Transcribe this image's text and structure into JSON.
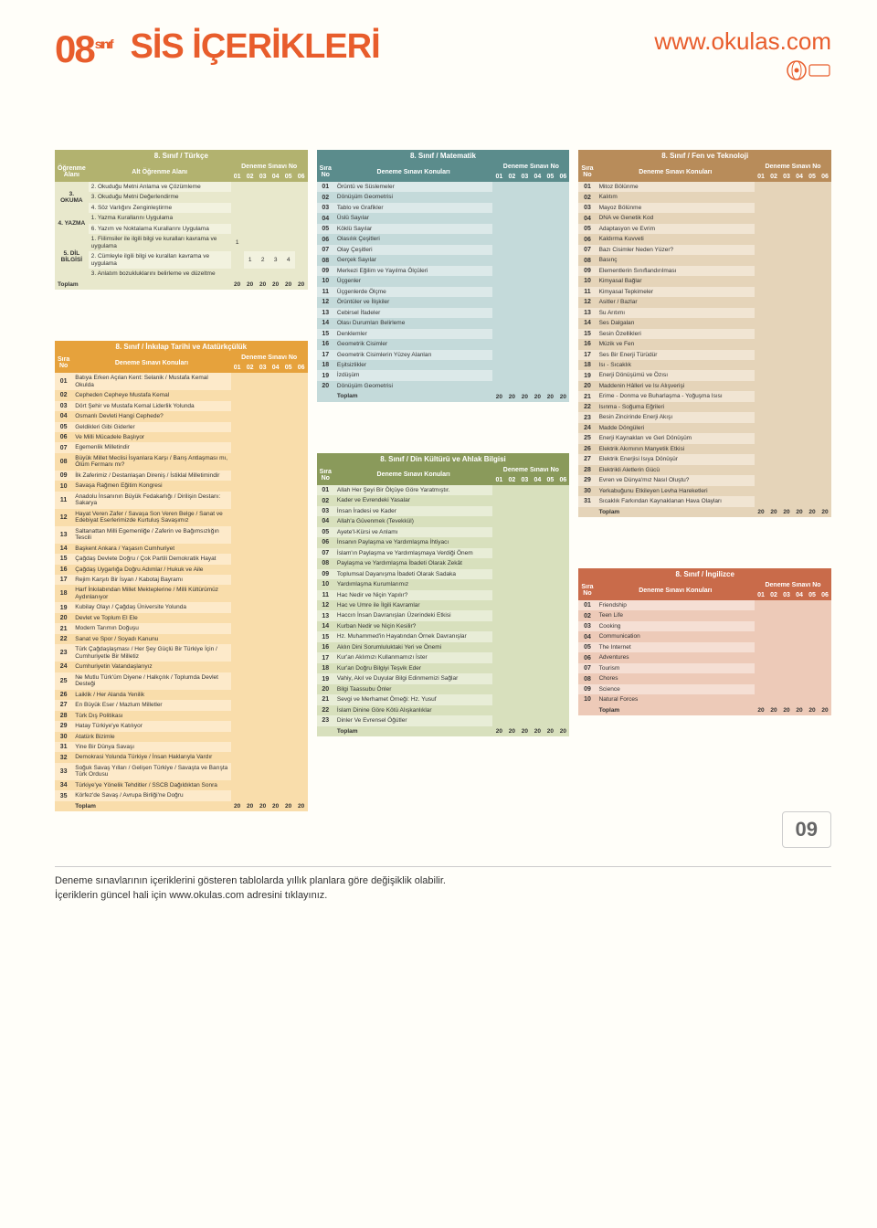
{
  "header": {
    "class_number": "08",
    "class_suffix": "sınıf",
    "title": "SİS İÇERİKLERİ",
    "website": "www.okulas.com"
  },
  "exam_cols": [
    "01",
    "02",
    "03",
    "04",
    "05",
    "06"
  ],
  "labels": {
    "sira_no": "Sıra No",
    "deneme_konulari": "Deneme Sınavı Konuları",
    "deneme_no": "Deneme Sınavı No",
    "ogrenme_alani": "Öğrenme Alanı",
    "alt_ogrenme": "Alt Öğrenme Alanı",
    "toplam": "Toplam"
  },
  "colors": {
    "turkce": {
      "head": "#b2b26f",
      "row_a": "#f2f2df",
      "row_b": "#e8e8cc",
      "stripe": "#e8e8cc"
    },
    "inkilap": {
      "head": "#e6a23c",
      "row_a": "#fdeaca",
      "row_b": "#f9ddab",
      "stripe": "#f9ddab"
    },
    "matematik": {
      "head": "#5b8c8c",
      "row_a": "#dce9e9",
      "row_b": "#c4dada",
      "stripe": "#c4dada"
    },
    "din": {
      "head": "#8a9a5b",
      "row_a": "#e8edd7",
      "row_b": "#d8e0bd",
      "stripe": "#d8e0bd"
    },
    "fen": {
      "head": "#b88c5a",
      "row_a": "#f1e5d3",
      "row_b": "#e5d4b9",
      "stripe": "#e5d4b9"
    },
    "ingilizce": {
      "head": "#c96b4a",
      "row_a": "#f5dfd4",
      "row_b": "#edcab8",
      "stripe": "#edcab8"
    }
  },
  "turkce": {
    "title": "8. Sınıf / Türkçe",
    "groups": [
      {
        "label": "3. OKUMA",
        "rows": [
          {
            "t": "2. Okuduğu Metni Anlama ve Çözümleme",
            "v": [
              "",
              "",
              "",
              "",
              "",
              ""
            ]
          },
          {
            "t": "3. Okuduğu Metni Değerlendirme",
            "v": [
              "",
              "",
              "",
              "",
              "",
              ""
            ]
          },
          {
            "t": "4. Söz Varlığını Zenginleştirme",
            "v": [
              "",
              "",
              "",
              "",
              "",
              ""
            ]
          }
        ]
      },
      {
        "label": "4. YAZMA",
        "rows": [
          {
            "t": "1. Yazma Kurallarını Uygulama",
            "v": [
              "",
              "",
              "",
              "",
              "",
              ""
            ]
          },
          {
            "t": "6. Yazım ve Noktalama Kurallarını Uygulama",
            "v": [
              "",
              "",
              "",
              "",
              "",
              ""
            ]
          }
        ]
      },
      {
        "label": "5. DİL BİLGİSİ",
        "rows": [
          {
            "t": "1. Fiilimsiler ile ilgili bilgi ve kuralları kavrama ve uygulama",
            "v": [
              "1",
              "",
              "",
              "",
              "",
              ""
            ]
          },
          {
            "t": "2. Cümleyle ilgili bilgi ve kuralları kavrama ve uygulama",
            "v": [
              "",
              "1",
              "2",
              "3",
              "4",
              ""
            ]
          },
          {
            "t": "3. Anlatım bozukluklarını belirleme ve düzeltme",
            "v": [
              "",
              "",
              "",
              "",
              "",
              ""
            ]
          }
        ]
      }
    ],
    "total": [
      "20",
      "20",
      "20",
      "20",
      "20",
      "20"
    ]
  },
  "inkilap": {
    "title": "8. Sınıf / İnkılap Tarihi ve Atatürkçülük",
    "rows": [
      "Batıya Erken Açılan Kent: Selanik / Mustafa Kemal Okulda",
      "Cepheden Cepheye Mustafa Kemal",
      "Dört Şehir ve Mustafa Kemal Liderlik Yolunda",
      "Osmanlı Devleti Hangi Cephede?",
      "Geldikleri Gibi Giderler",
      "Ve Milli Mücadele Başlıyor",
      "Egemenlik Milletindir",
      "Büyük Millet Meclisi İsyanlara Karşı / Barış Antlaşması mı, Ölüm Fermanı mı?",
      "İlk Zaferimiz / Destanlaşan Direniş / İstiklal Milletimindir",
      "Savaşa Rağmen Eğitim Kongresi",
      "Anadolu İnsanının Büyük Fedakarlığı / Dirilişin Destanı: Sakarya",
      "Hayat Veren Zafer / Savaşa Son Veren Belge / Sanat ve Edebiyat Eserlerimizde Kurtuluş Savaşımız",
      "Saltanattan Milli Egemenliğe / Zaferin ve Bağımsızlığın Tescili",
      "Başkent Ankara / Yaşasın Cumhuriyet",
      "Çağdaş Devlete Doğru / Çok Partili Demokratik Hayat",
      "Çağdaş Uygarlığa Doğru Adımlar / Hukuk ve Aile",
      "Rejim Karşıtı Bir İsyan / Kabotaj Bayramı",
      "Harf İnkılabından Millet Mekteplerine / Milli Kültürümüz Aydınlanıyor",
      "Kubilay Olayı / Çağdaş Üniversite Yolunda",
      "Devlet ve Toplum El Ele",
      "Modern Tarımın Doğuşu",
      "Sanat ve Spor / Soyadı Kanunu",
      "Türk Çağdaşlaşması / Her Şey Güçlü Bir Türkiye İçin / Cumhuriyetle Bir Milletiz",
      "Cumhuriyetin Vatandaşlarıyız",
      "Ne Mutlu Türk'üm Diyene / Halkçılık / Toplumda Devlet Desteği",
      "Laiklik / Her Alanda Yenilik",
      "En Büyük Eser / Mazlum Milletler",
      "Türk Dış Politikası",
      "Hatay Türkiye'ye Katılıyor",
      "Atatürk Bizimle",
      "Yine Bir Dünya Savaşı",
      "Demokrasi Yolunda Türkiye / İnsan Haklarıyla Vardır",
      "Soğuk Savaş Yılları / Gelişen Türkiye / Savaşta ve Barışta Türk Ordusu",
      "Türkiye'ye Yönelik Tehditler / SSCB Dağıldıktan Sonra",
      "Körfez'de Savaş / Avrupa Birliği'ne Doğru"
    ],
    "total": [
      "20",
      "20",
      "20",
      "20",
      "20",
      "20"
    ]
  },
  "matematik": {
    "title": "8. Sınıf / Matematik",
    "rows": [
      "Örüntü ve Süslemeler",
      "Dönüşüm Geometrisi",
      "Tablo ve Grafikler",
      "Üslü Sayılar",
      "Köklü Sayılar",
      "Olasılık Çeşitleri",
      "Olay Çeşitleri",
      "Gerçek Sayılar",
      "Merkezi Eğilim ve Yayılma Ölçüleri",
      "Üçgenler",
      "Üçgenlerde Ölçme",
      "Örüntüler ve İlişkiler",
      "Cebirsel İfadeler",
      "Olası Durumları Belirleme",
      "Denklemler",
      "Geometrik Cisimler",
      "Geometrik Cisimlerin Yüzey Alanları",
      "Eşitsizlikler",
      "İzdüşüm",
      "Dönüşüm Geometrisi"
    ],
    "total": [
      "20",
      "20",
      "20",
      "20",
      "20",
      "20"
    ]
  },
  "din": {
    "title": "8. Sınıf / Din Kültürü ve Ahlak Bilgisi",
    "rows": [
      "Allah Her Şeyi Bir Ölçüye Göre Yaratmıştır.",
      "Kader ve Evrendeki Yasalar",
      "İnsan İradesi ve Kader",
      "Allah'a Güvenmek (Tevekkül)",
      "Ayete'l-Kürsi ve Anlamı",
      "İnsanın Paylaşma ve Yardımlaşma İhtiyacı",
      "İslam'ın Paylaşma ve Yardımlaşmaya Verdiği Önem",
      "Paylaşma ve Yardımlaşma İbadeti Olarak Zekât",
      "Toplumsal Dayanışma İbadeti Olarak Sadaka",
      "Yardımlaşma Kurumlarımız",
      "Hac Nedir ve Niçin Yapılır?",
      "Hac ve Umre ile İlgili Kavramlar",
      "Haccın İnsan Davranışları Üzerindeki Etkisi",
      "Kurban Nedir ve Niçin Kesilir?",
      "Hz. Muhammed'in Hayatından Örnek Davranışlar",
      "Aklın Dini Sorumluluktaki Yeri ve Önemi",
      "Kur'an Aklımızı Kullanmamızı İster",
      "Kur'an Doğru Bilgiyi Teşvik Eder",
      "Vahiy, Akıl ve Duyular Bilgi Edinmemizi Sağlar",
      "Bilgi Taassubu Önler",
      "Sevgi ve Merhamet Örneği: Hz. Yusuf",
      "İslam Dinine Göre Kötü Alışkanlıklar",
      "Dinler Ve Evrensel Öğütler"
    ],
    "total": [
      "20",
      "20",
      "20",
      "20",
      "20",
      "20"
    ]
  },
  "fen": {
    "title": "8. Sınıf / Fen ve Teknoloji",
    "rows": [
      "Mitoz Bölünme",
      "Kalıtım",
      "Mayoz Bölünme",
      "DNA ve Genetik Kod",
      "Adaptasyon ve Evrim",
      "Kaldırma Kuvveti",
      "Bazı Cisimler Neden Yüzer?",
      "Basınç",
      "Elementlerin Sınıflandırılması",
      "Kimyasal Bağlar",
      "Kimyasal Tepkimeler",
      "Asitler / Bazlar",
      "Su Arıtımı",
      "Ses Dalgaları",
      "Sesin Özellikleri",
      "Müzik ve Fen",
      "Ses Bir Enerji Türüdür",
      "Isı - Sıcaklık",
      "Enerji Dönüşümü ve Özısı",
      "Maddenin Hâlleri ve Isı Alışverişi",
      "Erime - Donma ve Buharlaşma - Yoğuşma Isısı",
      "Isınma - Soğuma Eğrileri",
      "Besin Zincirinde Enerji Akışı",
      "Madde Döngüleri",
      "Enerji Kaynakları ve Geri Dönüşüm",
      "Elektrik Akımının Manyetik Etkisi",
      "Elektrik Enerjisi Isıya Dönüşür",
      "Elektrikli Aletlerin Gücü",
      "Evren ve Dünya'mız Nasıl Oluştu?",
      "Yerkabuğunu Etkileyen Levha Hareketleri",
      "Sıcaklık Farkından Kaynaklanan Hava Olayları"
    ],
    "total": [
      "20",
      "20",
      "20",
      "20",
      "20",
      "20"
    ]
  },
  "ingilizce": {
    "title": "8. Sınıf / İngilizce",
    "rows": [
      "Friendship",
      "Teen Life",
      "Cooking",
      "Communication",
      "The Internet",
      "Adventures",
      "Tourism",
      "Chores",
      "Science",
      "Natural Forces"
    ],
    "total": [
      "20",
      "20",
      "20",
      "20",
      "20",
      "20"
    ]
  },
  "footer": {
    "line1": "Deneme sınavlarının içeriklerini gösteren tablolarda yıllık planlara göre değişiklik olabilir.",
    "line2": "İçeriklerin güncel hali için www.okulas.com adresini tıklayınız.",
    "page": "09"
  }
}
